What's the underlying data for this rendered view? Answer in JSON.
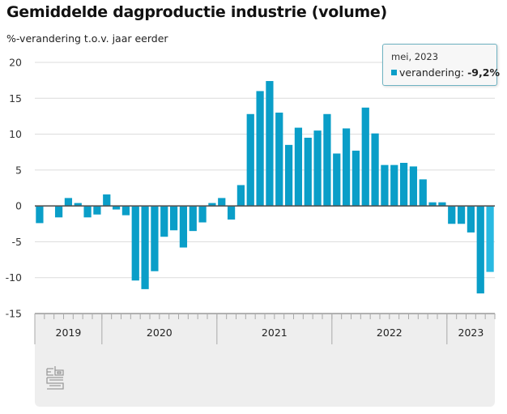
{
  "chart_data": {
    "type": "bar",
    "title": "Gemiddelde dagproductie industrie (volume)",
    "subtitle": "%-verandering t.o.v. jaar eerder",
    "ylim": [
      -15,
      20
    ],
    "yticks": [
      20,
      15,
      10,
      5,
      0,
      -5,
      -10,
      -15
    ],
    "grid": true,
    "colors": {
      "bar": "#0a9ec8",
      "highlight": "#29b9e2"
    },
    "years": [
      {
        "label": "2019",
        "months": 7
      },
      {
        "label": "2020",
        "months": 12
      },
      {
        "label": "2021",
        "months": 12
      },
      {
        "label": "2022",
        "months": 12
      },
      {
        "label": "2023",
        "months": 5
      }
    ],
    "series": [
      {
        "name": "verandering",
        "values": [
          -2.4,
          0,
          -1.6,
          1.1,
          0.4,
          -1.6,
          -1.2,
          1.6,
          -0.5,
          -1.3,
          -10.4,
          -11.6,
          -9.1,
          -4.3,
          -3.4,
          -5.8,
          -3.5,
          -2.3,
          0.4,
          1.1,
          -1.9,
          2.9,
          12.8,
          16.0,
          17.4,
          13.0,
          8.5,
          10.9,
          9.5,
          10.5,
          12.8,
          7.3,
          10.8,
          7.7,
          13.7,
          10.1,
          5.7,
          5.7,
          6.0,
          5.5,
          3.7,
          0.5,
          0.5,
          -2.5,
          -2.5,
          -3.7,
          -12.2,
          -9.2
        ]
      }
    ],
    "tooltip": {
      "date": "mei, 2023",
      "label": "verandering:",
      "value": "-9,2%"
    }
  },
  "logo": "cbs"
}
